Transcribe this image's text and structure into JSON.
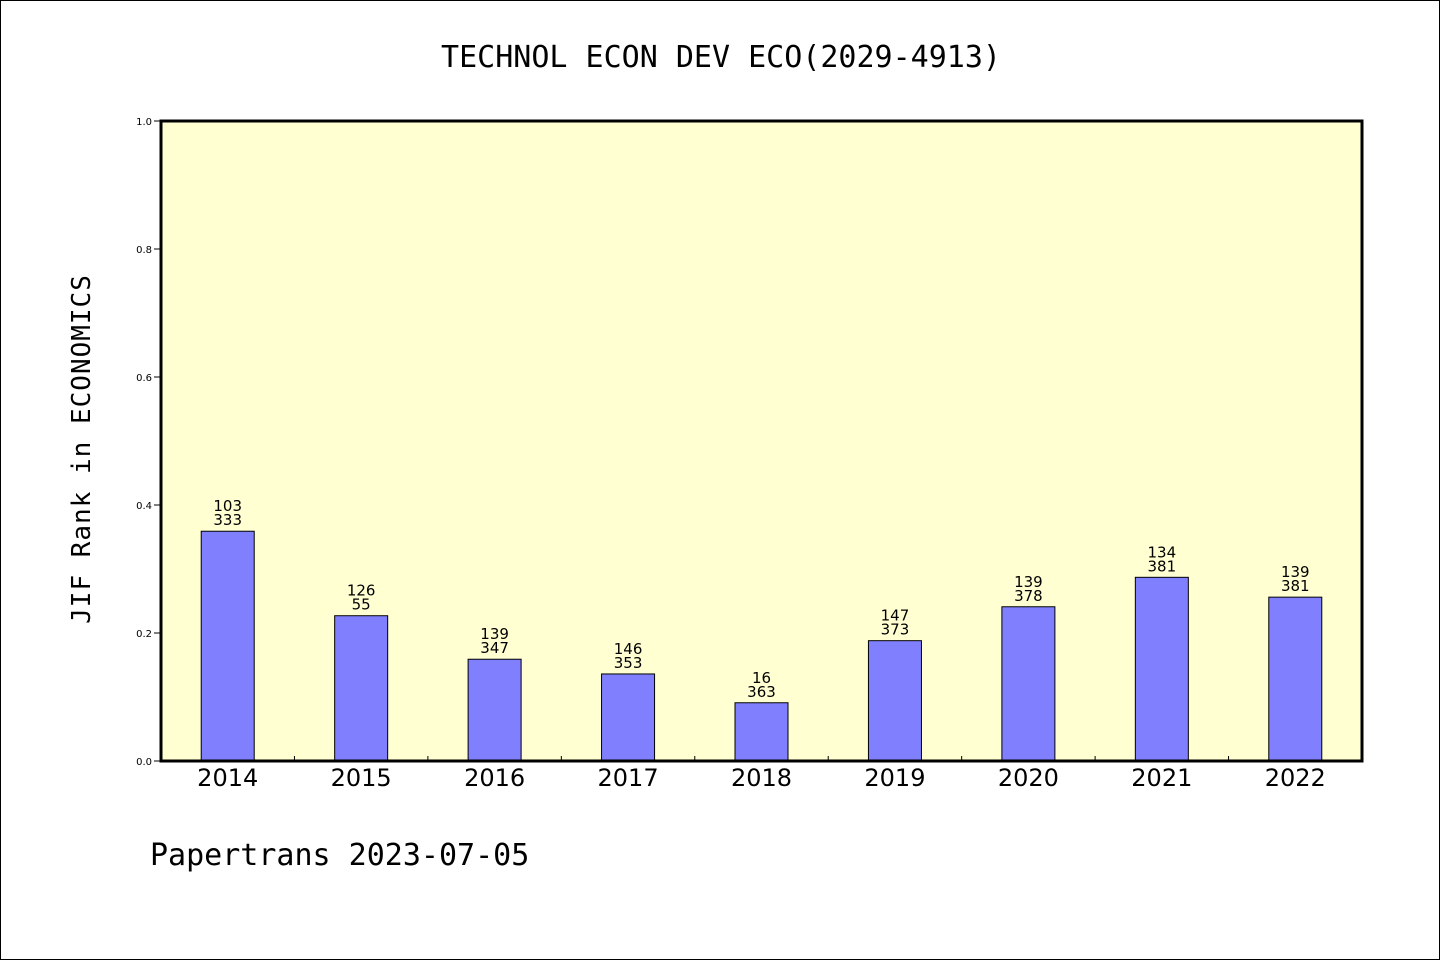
{
  "chart_data": {
    "type": "bar",
    "title": "TECHNOL ECON DEV ECO(2029-4913)",
    "ylabel": "JIF Rank in ECONOMICS",
    "xlabel": "",
    "ylim": [
      0,
      1.0
    ],
    "yticks": [
      "0.0",
      "0.2",
      "0.4",
      "0.6",
      "0.8",
      "1.0"
    ],
    "categories": [
      "2014",
      "2015",
      "2016",
      "2017",
      "2018",
      "2019",
      "2020",
      "2021",
      "2022"
    ],
    "values": [
      0.359,
      0.227,
      0.159,
      0.136,
      0.091,
      0.188,
      0.241,
      0.287,
      0.256
    ],
    "rank": [
      "103",
      "126",
      "139",
      "146",
      "16",
      "147",
      "139",
      "134",
      "139"
    ],
    "total": [
      "333",
      "55",
      "347",
      "353",
      "363",
      "373",
      "378",
      "381",
      "381"
    ],
    "grid": false,
    "plot_background": "#ffffd2",
    "bar_color": "#8080ff"
  },
  "footer": "Papertrans 2023-07-05"
}
